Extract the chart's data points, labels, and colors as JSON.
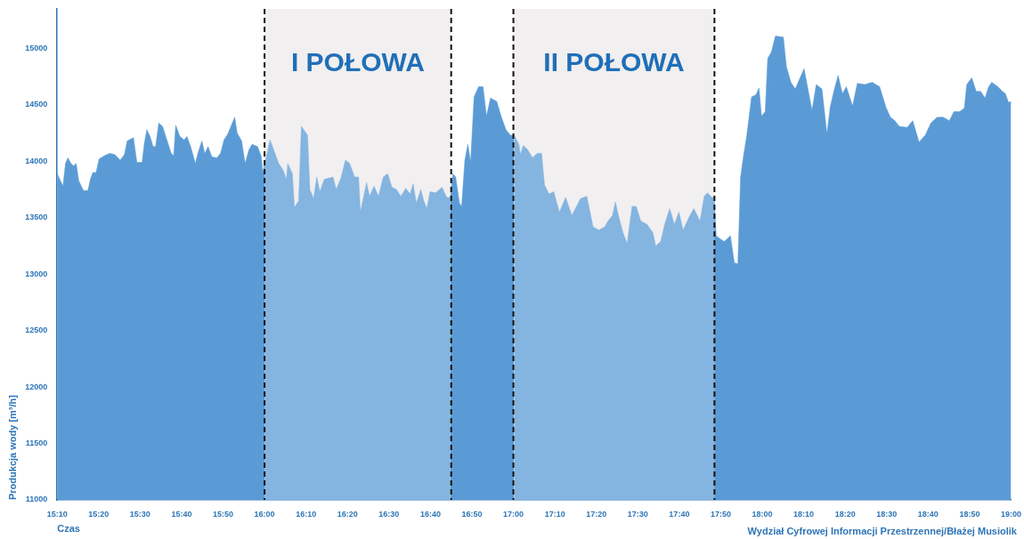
{
  "chart_data": {
    "type": "area",
    "xlabel": "Czas",
    "ylabel": "Produkcja wody [m³/h]",
    "annotations": [
      "Wydział Cyfrowej Informacji Przestrzennej/Błażej Musiolik"
    ],
    "xlim": [
      15.1667,
      19
    ],
    "xticks": [
      {
        "value": 15.1667,
        "label": "15:10"
      },
      {
        "value": 15.3333,
        "label": "15:20"
      },
      {
        "value": 15.5,
        "label": "15:30"
      },
      {
        "value": 15.6667,
        "label": "15:40"
      },
      {
        "value": 15.8333,
        "label": "15:50"
      },
      {
        "value": 16,
        "label": "16:00"
      },
      {
        "value": 16.1667,
        "label": "16:10"
      },
      {
        "value": 16.3333,
        "label": "16:20"
      },
      {
        "value": 16.5,
        "label": "16:30"
      },
      {
        "value": 16.6667,
        "label": "16:40"
      },
      {
        "value": 16.8333,
        "label": "16:50"
      },
      {
        "value": 17,
        "label": "17:00"
      },
      {
        "value": 17.1667,
        "label": "17:10"
      },
      {
        "value": 17.3333,
        "label": "17:20"
      },
      {
        "value": 17.5,
        "label": "17:30"
      },
      {
        "value": 17.6667,
        "label": "17:40"
      },
      {
        "value": 17.8333,
        "label": "17:50"
      },
      {
        "value": 18,
        "label": "18:00"
      },
      {
        "value": 18.1667,
        "label": "18:10"
      },
      {
        "value": 18.3333,
        "label": "18:20"
      },
      {
        "value": 18.5,
        "label": "18:30"
      },
      {
        "value": 18.6667,
        "label": "18:40"
      },
      {
        "value": 18.8333,
        "label": "18:50"
      },
      {
        "value": 19,
        "label": "19:00"
      }
    ],
    "ylim": [
      11000,
      15350
    ],
    "yticks": [
      11000,
      11500,
      12000,
      12500,
      13000,
      13500,
      14000,
      14500,
      15000
    ],
    "bands": [
      {
        "axis": "x",
        "from": 16,
        "to": 16.75,
        "label": "I POŁOWA",
        "color": "#f1eff0"
      },
      {
        "axis": "x",
        "from": 17,
        "to": 17.808,
        "label": "II POŁOWA",
        "color": "#f1eff0"
      }
    ],
    "series": [
      {
        "color": "#5b9bd5",
        "x": [
          15.167,
          15.19,
          15.2,
          15.21,
          15.222,
          15.233,
          15.243,
          15.253,
          15.272,
          15.29,
          15.3,
          15.31,
          15.323,
          15.335,
          15.357,
          15.377,
          15.398,
          15.42,
          15.437,
          15.448,
          15.473,
          15.487,
          15.508,
          15.517,
          15.527,
          15.54,
          15.552,
          15.562,
          15.575,
          15.59,
          15.603,
          15.625,
          15.635,
          15.643,
          15.66,
          15.677,
          15.688,
          15.703,
          15.722,
          15.732,
          15.748,
          15.76,
          15.773,
          15.788,
          15.808,
          15.823,
          15.837,
          15.852,
          15.865,
          15.88,
          15.89,
          15.908,
          15.922,
          15.937,
          15.95,
          15.972,
          15.987,
          15.993,
          16.0
        ],
        "values": [
          13890,
          13780,
          13980,
          14030,
          13980,
          13960,
          13980,
          13830,
          13740,
          13740,
          13840,
          13900,
          13900,
          14020,
          14050,
          14070,
          14060,
          14010,
          14060,
          14180,
          14210,
          13990,
          13990,
          14160,
          14280,
          14220,
          14130,
          14130,
          14340,
          14310,
          14220,
          14070,
          14050,
          14320,
          14220,
          14190,
          14220,
          14130,
          13980,
          14070,
          14180,
          14070,
          14130,
          14040,
          14030,
          14070,
          14190,
          14240,
          14310,
          14390,
          14250,
          14180,
          13980,
          14100,
          14150,
          14130,
          14040,
          13900,
          13980
        ]
      },
      {
        "color": "#84b4e0",
        "x": [
          16.0,
          16.003,
          16.022,
          16.057,
          16.075,
          16.088,
          16.093,
          16.112,
          16.12,
          16.137,
          16.148,
          16.173,
          16.182,
          16.197,
          16.21,
          16.222,
          16.24,
          16.275,
          16.288,
          16.307,
          16.325,
          16.342,
          16.362,
          16.378,
          16.385,
          16.41,
          16.422,
          16.44,
          16.458,
          16.477,
          16.495,
          16.512,
          16.53,
          16.548,
          16.567,
          16.585,
          16.597,
          16.61,
          16.628,
          16.64,
          16.652,
          16.665,
          16.688,
          16.713,
          16.732,
          16.747
        ],
        "values": [
          13980,
          14000,
          14190,
          13980,
          13920,
          13840,
          13980,
          13890,
          13590,
          13650,
          14310,
          14230,
          13750,
          13670,
          13860,
          13730,
          13840,
          13860,
          13750,
          13850,
          14010,
          13980,
          13860,
          13860,
          13550,
          13810,
          13690,
          13780,
          13690,
          13860,
          13890,
          13770,
          13750,
          13690,
          13760,
          13710,
          13800,
          13630,
          13750,
          13650,
          13580,
          13730,
          13720,
          13770,
          13680,
          13680
        ]
      },
      {
        "color": "#5b9bd5",
        "x": [
          16.747,
          16.757,
          16.768,
          16.783,
          16.792,
          16.805,
          16.817,
          16.828,
          16.842,
          16.86,
          16.878,
          16.892,
          16.908,
          16.933,
          16.952,
          16.97,
          16.988,
          17.003
        ],
        "values": [
          13680,
          13890,
          13860,
          13630,
          13600,
          14010,
          14150,
          13990,
          14570,
          14660,
          14660,
          14400,
          14560,
          14530,
          14390,
          14280,
          14230,
          14230
        ]
      },
      {
        "color": "#84b4e0",
        "x": [
          17.003,
          17.022,
          17.028,
          17.04,
          17.058,
          17.077,
          17.095,
          17.113,
          17.125,
          17.143,
          17.162,
          17.185,
          17.21,
          17.235,
          17.27,
          17.295,
          17.32,
          17.343,
          17.368,
          17.38,
          17.398,
          17.41,
          17.422,
          17.44,
          17.457,
          17.477,
          17.493,
          17.512,
          17.537,
          17.56,
          17.572,
          17.592,
          17.608,
          17.628,
          17.647,
          17.665,
          17.682,
          17.707,
          17.725,
          17.75,
          17.767,
          17.78,
          17.797,
          17.807
        ],
        "values": [
          14230,
          14150,
          14060,
          14140,
          14100,
          14030,
          14070,
          14070,
          13790,
          13710,
          13730,
          13550,
          13680,
          13520,
          13670,
          13690,
          13420,
          13390,
          13420,
          13470,
          13520,
          13640,
          13520,
          13370,
          13270,
          13600,
          13600,
          13470,
          13440,
          13370,
          13250,
          13290,
          13440,
          13580,
          13440,
          13550,
          13390,
          13510,
          13580,
          13470,
          13690,
          13720,
          13680,
          13680
        ]
      },
      {
        "color": "#5b9bd5",
        "x": [
          17.807,
          17.815,
          17.832,
          17.848,
          17.872,
          17.888,
          17.902,
          17.913,
          17.925,
          17.938,
          17.957,
          17.975,
          17.987,
          17.997,
          18.012,
          18.022,
          18.037,
          18.053,
          18.085,
          18.097,
          18.115,
          18.133,
          18.15,
          18.168,
          18.182,
          18.2,
          18.217,
          18.24,
          18.26,
          18.273,
          18.29,
          18.305,
          18.322,
          18.338,
          18.363,
          18.382,
          18.412,
          18.442,
          18.472,
          18.497,
          18.515,
          18.533,
          18.55,
          18.582,
          18.605,
          18.63,
          18.655,
          18.678,
          18.703,
          18.727,
          18.752,
          18.77,
          18.793,
          18.812,
          18.822,
          18.842,
          18.86,
          18.878,
          18.895,
          18.91,
          18.922,
          18.947,
          18.965,
          18.977,
          18.99,
          19.0
        ],
        "values": [
          13680,
          13340,
          13310,
          13290,
          13340,
          13100,
          13090,
          13860,
          14050,
          14230,
          14570,
          14590,
          14650,
          14400,
          14440,
          14910,
          14970,
          15110,
          15100,
          14840,
          14700,
          14640,
          14730,
          14820,
          14660,
          14450,
          14680,
          14640,
          14240,
          14480,
          14640,
          14760,
          14600,
          14660,
          14490,
          14690,
          14680,
          14700,
          14660,
          14480,
          14390,
          14360,
          14310,
          14300,
          14360,
          14170,
          14230,
          14340,
          14390,
          14390,
          14360,
          14440,
          14440,
          14470,
          14680,
          14740,
          14620,
          14620,
          14560,
          14660,
          14700,
          14660,
          14620,
          14600,
          14520,
          14530
        ]
      }
    ]
  }
}
